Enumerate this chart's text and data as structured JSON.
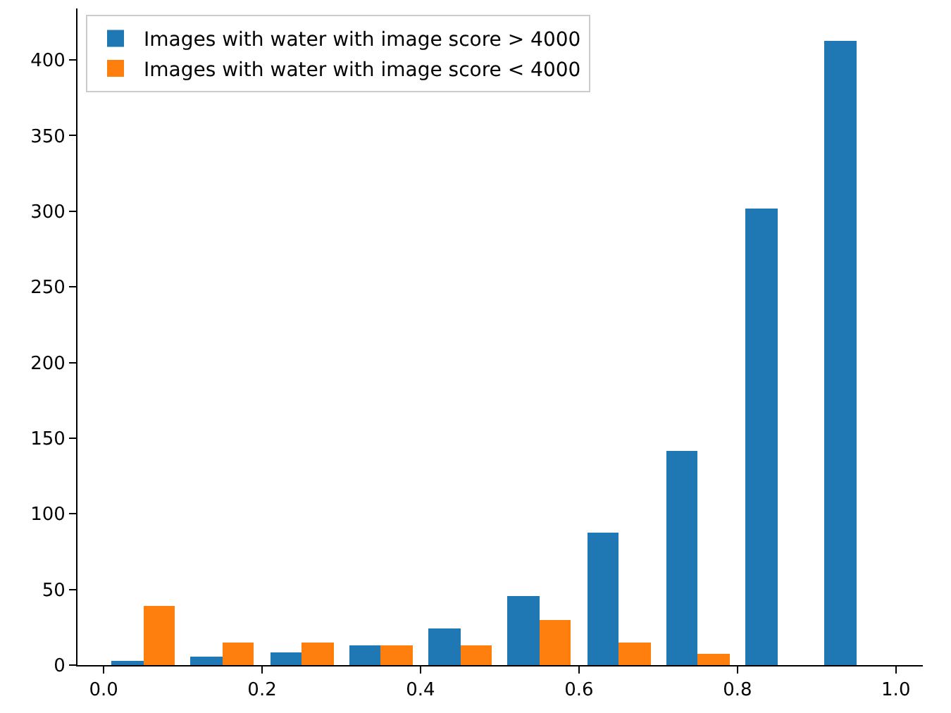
{
  "chart_data": {
    "type": "histogram",
    "bins": [
      0.0,
      0.1,
      0.2,
      0.3,
      0.4,
      0.5,
      0.6,
      0.7,
      0.8,
      0.9,
      1.0
    ],
    "series": [
      {
        "name": "Images with water with image score > 4000",
        "color": "#1f77b4",
        "values": [
          3,
          6,
          8,
          13,
          24,
          46,
          88,
          142,
          302,
          413
        ]
      },
      {
        "name": "Images with water with image score < 4000",
        "color": "#ff7f0e",
        "values": [
          39,
          15,
          15,
          13,
          13,
          30,
          15,
          7,
          0,
          0
        ]
      }
    ],
    "xlim": [
      -0.033,
      1.034
    ],
    "ylim": [
      0,
      434
    ],
    "xticks": [
      {
        "value": 0.0,
        "label": "0.0"
      },
      0.2,
      0.4,
      0.6,
      0.8,
      {
        "value": 1.0,
        "label": "1.0"
      }
    ],
    "yticks": [
      0,
      50,
      100,
      150,
      200,
      250,
      300,
      350,
      400
    ],
    "legend": "top left",
    "grid": false
  }
}
